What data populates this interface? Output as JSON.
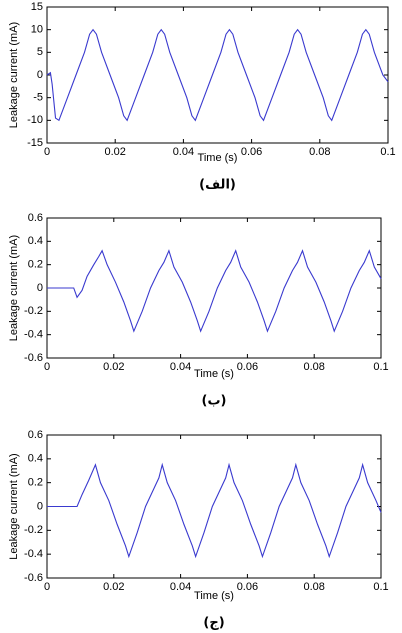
{
  "chart_data": [
    {
      "type": "line",
      "caption": "(الف)",
      "xlabel": "Time (s)",
      "ylabel": "Leakage current (mA)",
      "color": "#3a3acf",
      "xlim": [
        0,
        0.1
      ],
      "ylim": [
        -15,
        15
      ],
      "xticks": [
        0,
        0.02,
        0.04,
        0.06,
        0.08,
        0.1
      ],
      "yticks": [
        -15,
        -10,
        -5,
        0,
        5,
        10,
        15
      ],
      "x": [
        0,
        0.001,
        0.0015,
        0.0025,
        0.0035,
        0.006,
        0.0085,
        0.011,
        0.0125,
        0.0135,
        0.0145,
        0.016,
        0.0185,
        0.021,
        0.0225,
        0.0235,
        0.026,
        0.0285,
        0.031,
        0.0325,
        0.0335,
        0.0345,
        0.036,
        0.0385,
        0.041,
        0.0425,
        0.0435,
        0.046,
        0.0485,
        0.051,
        0.0525,
        0.0535,
        0.0545,
        0.056,
        0.0585,
        0.061,
        0.0625,
        0.0635,
        0.066,
        0.0685,
        0.071,
        0.0725,
        0.0735,
        0.0745,
        0.076,
        0.0785,
        0.081,
        0.0825,
        0.0835,
        0.086,
        0.0885,
        0.091,
        0.0925,
        0.0935,
        0.0945,
        0.096,
        0.0985,
        0.1
      ],
      "values": [
        0,
        0.5,
        -2,
        -9.5,
        -10,
        -5,
        0,
        5,
        9,
        10,
        9,
        5,
        0,
        -5,
        -9,
        -10,
        -5,
        0,
        5,
        9,
        10,
        9,
        5,
        0,
        -5,
        -9,
        -10,
        -5,
        0,
        5,
        9,
        10,
        9,
        5,
        0,
        -5,
        -9,
        -10,
        -5,
        0,
        5,
        9,
        10,
        9,
        5,
        0,
        -5,
        -9,
        -10,
        -5,
        0,
        5,
        9,
        10,
        9,
        5,
        0,
        -1.5
      ]
    },
    {
      "type": "line",
      "caption": "(ب)",
      "xlabel": "Time (s)",
      "ylabel": "Leakage current (mA)",
      "color": "#3a3acf",
      "xlim": [
        0,
        0.1
      ],
      "ylim": [
        -0.6,
        0.6
      ],
      "xticks": [
        0,
        0.02,
        0.04,
        0.06,
        0.08,
        0.1
      ],
      "yticks": [
        -0.6,
        -0.4,
        -0.2,
        0,
        0.2,
        0.4,
        0.6
      ],
      "x": [
        0,
        0.008,
        0.009,
        0.0105,
        0.012,
        0.014,
        0.0155,
        0.0165,
        0.018,
        0.0205,
        0.023,
        0.025,
        0.026,
        0.0285,
        0.031,
        0.0335,
        0.035,
        0.0365,
        0.038,
        0.0405,
        0.043,
        0.045,
        0.046,
        0.0485,
        0.051,
        0.0535,
        0.055,
        0.0565,
        0.058,
        0.0605,
        0.063,
        0.065,
        0.066,
        0.0685,
        0.071,
        0.0735,
        0.075,
        0.0765,
        0.078,
        0.0805,
        0.083,
        0.085,
        0.086,
        0.0885,
        0.091,
        0.0935,
        0.095,
        0.0965,
        0.098,
        0.1
      ],
      "values": [
        0,
        0,
        -0.08,
        -0.02,
        0.1,
        0.2,
        0.27,
        0.32,
        0.2,
        0.05,
        -0.12,
        -0.28,
        -0.37,
        -0.2,
        0,
        0.15,
        0.22,
        0.32,
        0.18,
        0.05,
        -0.12,
        -0.28,
        -0.37,
        -0.2,
        0,
        0.15,
        0.22,
        0.32,
        0.18,
        0.05,
        -0.12,
        -0.28,
        -0.37,
        -0.2,
        0,
        0.15,
        0.22,
        0.32,
        0.18,
        0.05,
        -0.12,
        -0.28,
        -0.37,
        -0.2,
        0,
        0.15,
        0.22,
        0.32,
        0.18,
        0.08
      ]
    },
    {
      "type": "line",
      "caption": "(ج)",
      "xlabel": "Time (s)",
      "ylabel": "Leakage current (mA)",
      "color": "#3a3acf",
      "xlim": [
        0,
        0.1
      ],
      "ylim": [
        -0.6,
        0.6
      ],
      "xticks": [
        0,
        0.02,
        0.04,
        0.06,
        0.08,
        0.1
      ],
      "yticks": [
        -0.6,
        -0.4,
        -0.2,
        0,
        0.2,
        0.4,
        0.6
      ],
      "x": [
        0,
        0.009,
        0.0105,
        0.0125,
        0.0145,
        0.016,
        0.0185,
        0.021,
        0.0235,
        0.0245,
        0.027,
        0.0295,
        0.032,
        0.0335,
        0.0345,
        0.036,
        0.0385,
        0.041,
        0.0435,
        0.0445,
        0.047,
        0.0495,
        0.052,
        0.0535,
        0.0545,
        0.056,
        0.0585,
        0.061,
        0.0635,
        0.0645,
        0.067,
        0.0695,
        0.072,
        0.0735,
        0.0745,
        0.076,
        0.0785,
        0.081,
        0.0835,
        0.0845,
        0.087,
        0.0895,
        0.092,
        0.0935,
        0.0945,
        0.096,
        0.0985,
        0.1
      ],
      "values": [
        0,
        0,
        0.1,
        0.22,
        0.35,
        0.2,
        0.05,
        -0.15,
        -0.33,
        -0.42,
        -0.22,
        0,
        0.15,
        0.24,
        0.35,
        0.2,
        0.05,
        -0.15,
        -0.33,
        -0.42,
        -0.22,
        0,
        0.15,
        0.24,
        0.35,
        0.2,
        0.05,
        -0.15,
        -0.33,
        -0.42,
        -0.22,
        0,
        0.15,
        0.24,
        0.35,
        0.2,
        0.05,
        -0.15,
        -0.33,
        -0.42,
        -0.22,
        0,
        0.15,
        0.24,
        0.35,
        0.2,
        0.05,
        -0.05
      ]
    }
  ]
}
